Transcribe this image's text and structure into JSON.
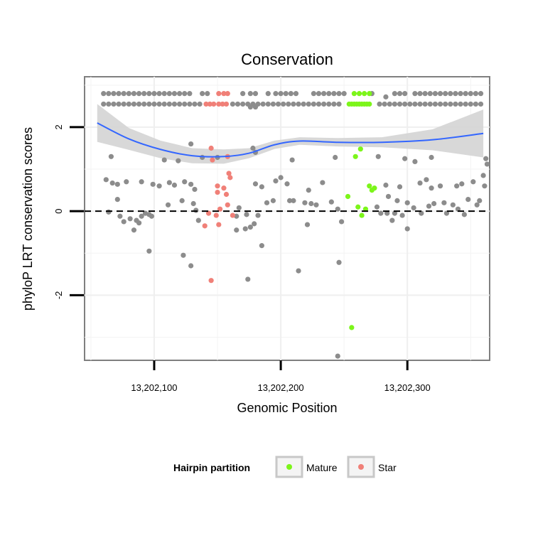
{
  "chart_data": {
    "type": "scatter",
    "title": "Conservation",
    "xlabel": "Genomic Position",
    "ylabel": "phyloP LRT conservation scores",
    "xlim": [
      13202045,
      13202365
    ],
    "ylim": [
      -3.55,
      3.2
    ],
    "xticks": [
      13202100,
      13202200,
      13202300
    ],
    "xtick_labels": [
      "13,202,100",
      "13,202,200",
      "13,202,300"
    ],
    "yticks": [
      -2,
      0,
      2
    ],
    "ytick_labels": [
      "-2",
      "0",
      "2"
    ],
    "hline": 0,
    "legend": {
      "title": "Hairpin partition",
      "position": "bottom",
      "entries": [
        {
          "label": "Mature",
          "color": "#7cf51a"
        },
        {
          "label": "Star",
          "color": "#f08078"
        }
      ]
    },
    "colors": {
      "other": "#8c8c8c",
      "mature": "#7cf51a",
      "star": "#f08078",
      "smooth": "#3366ff",
      "band": "#d4d4d4"
    },
    "smooth": {
      "x": [
        13202055,
        13202080,
        13202105,
        13202130,
        13202155,
        13202175,
        13202195,
        13202215,
        13202245,
        13202280,
        13202320,
        13202360
      ],
      "y": [
        2.1,
        1.72,
        1.47,
        1.32,
        1.3,
        1.38,
        1.58,
        1.67,
        1.64,
        1.64,
        1.7,
        1.85
      ],
      "upper": [
        2.55,
        1.98,
        1.68,
        1.5,
        1.47,
        1.5,
        1.68,
        1.76,
        1.74,
        1.76,
        1.95,
        2.42
      ],
      "lower": [
        1.65,
        1.46,
        1.26,
        1.14,
        1.13,
        1.26,
        1.48,
        1.58,
        1.54,
        1.52,
        1.45,
        1.28
      ]
    },
    "series": [
      {
        "name": "Other",
        "points": [
          [
            13202060,
            2.8
          ],
          [
            13202064,
            2.8
          ],
          [
            13202068,
            2.8
          ],
          [
            13202072,
            2.8
          ],
          [
            13202076,
            2.8
          ],
          [
            13202080,
            2.8
          ],
          [
            13202084,
            2.8
          ],
          [
            13202088,
            2.8
          ],
          [
            13202092,
            2.8
          ],
          [
            13202096,
            2.8
          ],
          [
            13202100,
            2.8
          ],
          [
            13202104,
            2.8
          ],
          [
            13202108,
            2.8
          ],
          [
            13202112,
            2.8
          ],
          [
            13202116,
            2.8
          ],
          [
            13202120,
            2.8
          ],
          [
            13202124,
            2.8
          ],
          [
            13202128,
            2.8
          ],
          [
            13202138,
            2.8
          ],
          [
            13202142,
            2.8
          ],
          [
            13202170,
            2.8
          ],
          [
            13202176,
            2.8
          ],
          [
            13202180,
            2.8
          ],
          [
            13202190,
            2.8
          ],
          [
            13202196,
            2.8
          ],
          [
            13202200,
            2.8
          ],
          [
            13202204,
            2.8
          ],
          [
            13202208,
            2.8
          ],
          [
            13202212,
            2.8
          ],
          [
            13202226,
            2.8
          ],
          [
            13202230,
            2.8
          ],
          [
            13202234,
            2.8
          ],
          [
            13202238,
            2.8
          ],
          [
            13202242,
            2.8
          ],
          [
            13202246,
            2.8
          ],
          [
            13202250,
            2.8
          ],
          [
            13202272,
            2.8
          ],
          [
            13202290,
            2.8
          ],
          [
            13202294,
            2.8
          ],
          [
            13202298,
            2.8
          ],
          [
            13202306,
            2.8
          ],
          [
            13202310,
            2.8
          ],
          [
            13202314,
            2.8
          ],
          [
            13202318,
            2.8
          ],
          [
            13202322,
            2.8
          ],
          [
            13202326,
            2.8
          ],
          [
            13202330,
            2.8
          ],
          [
            13202334,
            2.8
          ],
          [
            13202338,
            2.8
          ],
          [
            13202342,
            2.8
          ],
          [
            13202346,
            2.8
          ],
          [
            13202350,
            2.8
          ],
          [
            13202354,
            2.8
          ],
          [
            13202358,
            2.8
          ],
          [
            13202060,
            2.55
          ],
          [
            13202064,
            2.55
          ],
          [
            13202068,
            2.55
          ],
          [
            13202072,
            2.55
          ],
          [
            13202076,
            2.55
          ],
          [
            13202080,
            2.55
          ],
          [
            13202084,
            2.55
          ],
          [
            13202088,
            2.55
          ],
          [
            13202092,
            2.55
          ],
          [
            13202096,
            2.55
          ],
          [
            13202100,
            2.55
          ],
          [
            13202104,
            2.55
          ],
          [
            13202108,
            2.55
          ],
          [
            13202112,
            2.55
          ],
          [
            13202116,
            2.55
          ],
          [
            13202120,
            2.55
          ],
          [
            13202124,
            2.55
          ],
          [
            13202128,
            2.55
          ],
          [
            13202132,
            2.55
          ],
          [
            13202136,
            2.55
          ],
          [
            13202162,
            2.55
          ],
          [
            13202166,
            2.55
          ],
          [
            13202170,
            2.55
          ],
          [
            13202174,
            2.55
          ],
          [
            13202178,
            2.55
          ],
          [
            13202182,
            2.55
          ],
          [
            13202186,
            2.55
          ],
          [
            13202190,
            2.55
          ],
          [
            13202194,
            2.55
          ],
          [
            13202198,
            2.55
          ],
          [
            13202202,
            2.55
          ],
          [
            13202206,
            2.55
          ],
          [
            13202210,
            2.55
          ],
          [
            13202214,
            2.55
          ],
          [
            13202218,
            2.55
          ],
          [
            13202222,
            2.55
          ],
          [
            13202226,
            2.55
          ],
          [
            13202230,
            2.55
          ],
          [
            13202234,
            2.55
          ],
          [
            13202238,
            2.55
          ],
          [
            13202242,
            2.55
          ],
          [
            13202246,
            2.55
          ],
          [
            13202278,
            2.55
          ],
          [
            13202282,
            2.55
          ],
          [
            13202286,
            2.55
          ],
          [
            13202290,
            2.55
          ],
          [
            13202294,
            2.55
          ],
          [
            13202298,
            2.55
          ],
          [
            13202302,
            2.55
          ],
          [
            13202306,
            2.55
          ],
          [
            13202310,
            2.55
          ],
          [
            13202314,
            2.55
          ],
          [
            13202318,
            2.55
          ],
          [
            13202322,
            2.55
          ],
          [
            13202326,
            2.55
          ],
          [
            13202330,
            2.55
          ],
          [
            13202334,
            2.55
          ],
          [
            13202338,
            2.55
          ],
          [
            13202342,
            2.55
          ],
          [
            13202346,
            2.55
          ],
          [
            13202350,
            2.55
          ],
          [
            13202354,
            2.55
          ],
          [
            13202358,
            2.55
          ],
          [
            13202176,
            2.48
          ],
          [
            13202180,
            2.48
          ],
          [
            13202283,
            2.72
          ],
          [
            13202066,
            1.3
          ],
          [
            13202108,
            1.22
          ],
          [
            13202119,
            1.2
          ],
          [
            13202129,
            1.6
          ],
          [
            13202138,
            1.28
          ],
          [
            13202150,
            1.28
          ],
          [
            13202178,
            1.5
          ],
          [
            13202180,
            1.4
          ],
          [
            13202209,
            1.22
          ],
          [
            13202243,
            1.28
          ],
          [
            13202277,
            1.3
          ],
          [
            13202298,
            1.25
          ],
          [
            13202306,
            1.18
          ],
          [
            13202319,
            1.28
          ],
          [
            13202362,
            1.25
          ],
          [
            13202363,
            1.12
          ],
          [
            13202062,
            0.75
          ],
          [
            13202067,
            0.67
          ],
          [
            13202071,
            0.64
          ],
          [
            13202078,
            0.7
          ],
          [
            13202090,
            0.7
          ],
          [
            13202099,
            0.64
          ],
          [
            13202104,
            0.6
          ],
          [
            13202112,
            0.68
          ],
          [
            13202116,
            0.62
          ],
          [
            13202124,
            0.7
          ],
          [
            13202129,
            0.64
          ],
          [
            13202132,
            0.52
          ],
          [
            13202180,
            0.65
          ],
          [
            13202185,
            0.58
          ],
          [
            13202196,
            0.72
          ],
          [
            13202200,
            0.8
          ],
          [
            13202205,
            0.65
          ],
          [
            13202222,
            0.5
          ],
          [
            13202233,
            0.68
          ],
          [
            13202283,
            0.62
          ],
          [
            13202294,
            0.58
          ],
          [
            13202310,
            0.67
          ],
          [
            13202315,
            0.75
          ],
          [
            13202319,
            0.55
          ],
          [
            13202326,
            0.6
          ],
          [
            13202339,
            0.6
          ],
          [
            13202343,
            0.65
          ],
          [
            13202352,
            0.7
          ],
          [
            13202360,
            0.85
          ],
          [
            13202361,
            0.6
          ],
          [
            13202064,
            -0.02
          ],
          [
            13202071,
            0.28
          ],
          [
            13202073,
            -0.12
          ],
          [
            13202076,
            -0.25
          ],
          [
            13202081,
            -0.18
          ],
          [
            13202084,
            -0.45
          ],
          [
            13202086,
            -0.22
          ],
          [
            13202088,
            -0.28
          ],
          [
            13202090,
            -0.12
          ],
          [
            13202093,
            -0.05
          ],
          [
            13202096,
            -0.08
          ],
          [
            13202098,
            -0.12
          ],
          [
            13202111,
            0.15
          ],
          [
            13202122,
            0.25
          ],
          [
            13202131,
            0.18
          ],
          [
            13202133,
            0.02
          ],
          [
            13202135,
            -0.22
          ],
          [
            13202165,
            -0.12
          ],
          [
            13202167,
            0.08
          ],
          [
            13202173,
            -0.08
          ],
          [
            13202176,
            -0.38
          ],
          [
            13202179,
            -0.3
          ],
          [
            13202182,
            -0.1
          ],
          [
            13202189,
            0.2
          ],
          [
            13202194,
            0.25
          ],
          [
            13202207,
            0.25
          ],
          [
            13202210,
            0.25
          ],
          [
            13202219,
            0.2
          ],
          [
            13202221,
            -0.32
          ],
          [
            13202224,
            0.18
          ],
          [
            13202228,
            0.15
          ],
          [
            13202240,
            0.22
          ],
          [
            13202245,
            0.05
          ],
          [
            13202248,
            -0.25
          ],
          [
            13202276,
            0.1
          ],
          [
            13202279,
            -0.05
          ],
          [
            13202285,
            0.35
          ],
          [
            13202288,
            -0.22
          ],
          [
            13202290,
            -0.05
          ],
          [
            13202292,
            0.25
          ],
          [
            13202296,
            -0.1
          ],
          [
            13202300,
            0.2
          ],
          [
            13202305,
            0.08
          ],
          [
            13202311,
            -0.05
          ],
          [
            13202317,
            0.12
          ],
          [
            13202321,
            0.18
          ],
          [
            13202329,
            0.2
          ],
          [
            13202331,
            -0.05
          ],
          [
            13202336,
            0.15
          ],
          [
            13202340,
            0.05
          ],
          [
            13202345,
            -0.08
          ],
          [
            13202348,
            0.28
          ],
          [
            13202355,
            0.15
          ],
          [
            13202357,
            0.25
          ],
          [
            13202284,
            -0.05
          ],
          [
            13202300,
            -0.42
          ],
          [
            13202165,
            -0.45
          ],
          [
            13202172,
            -0.42
          ],
          [
            13202185,
            -0.82
          ],
          [
            13202096,
            -0.95
          ],
          [
            13202123,
            -1.05
          ],
          [
            13202129,
            -1.3
          ],
          [
            13202174,
            -1.62
          ],
          [
            13202214,
            -1.42
          ],
          [
            13202246,
            -1.22
          ],
          [
            13202245,
            -3.45
          ]
        ]
      },
      {
        "name": "Mature",
        "points": [
          [
            13202258,
            2.8
          ],
          [
            13202262,
            2.8
          ],
          [
            13202266,
            2.8
          ],
          [
            13202270,
            2.8
          ],
          [
            13202254,
            2.55
          ],
          [
            13202256,
            2.55
          ],
          [
            13202258,
            2.55
          ],
          [
            13202260,
            2.55
          ],
          [
            13202262,
            2.55
          ],
          [
            13202264,
            2.55
          ],
          [
            13202266,
            2.55
          ],
          [
            13202268,
            2.55
          ],
          [
            13202270,
            2.55
          ],
          [
            13202263,
            1.48
          ],
          [
            13202259,
            1.3
          ],
          [
            13202253,
            0.35
          ],
          [
            13202261,
            0.1
          ],
          [
            13202264,
            -0.1
          ],
          [
            13202267,
            0.05
          ],
          [
            13202270,
            0.6
          ],
          [
            13202272,
            0.5
          ],
          [
            13202274,
            0.55
          ],
          [
            13202256,
            -2.77
          ]
        ]
      },
      {
        "name": "Star",
        "points": [
          [
            13202151,
            2.8
          ],
          [
            13202155,
            2.8
          ],
          [
            13202158,
            2.8
          ],
          [
            13202141,
            2.55
          ],
          [
            13202144,
            2.55
          ],
          [
            13202147,
            2.55
          ],
          [
            13202151,
            2.55
          ],
          [
            13202154,
            2.55
          ],
          [
            13202157,
            2.55
          ],
          [
            13202145,
            1.5
          ],
          [
            13202146,
            1.22
          ],
          [
            13202158,
            1.3
          ],
          [
            13202159,
            0.9
          ],
          [
            13202160,
            0.8
          ],
          [
            13202150,
            0.6
          ],
          [
            13202155,
            0.55
          ],
          [
            13202150,
            0.45
          ],
          [
            13202157,
            0.4
          ],
          [
            13202152,
            0.05
          ],
          [
            13202158,
            0.15
          ],
          [
            13202143,
            -0.05
          ],
          [
            13202149,
            -0.1
          ],
          [
            13202162,
            -0.1
          ],
          [
            13202151,
            -0.32
          ],
          [
            13202140,
            -0.35
          ],
          [
            13202145,
            -1.65
          ]
        ]
      }
    ]
  }
}
